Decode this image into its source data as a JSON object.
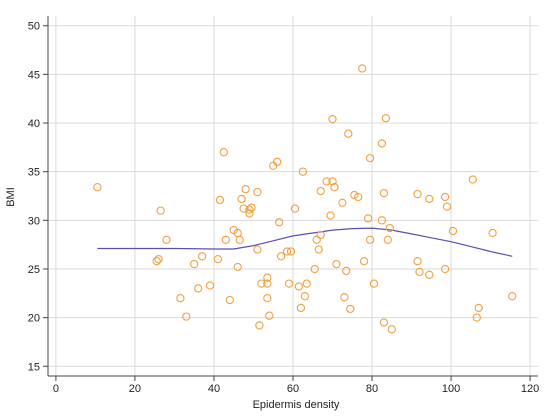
{
  "chart_data": {
    "type": "scatter",
    "xlabel": "Epidermis density",
    "ylabel": "BMI",
    "xlim": [
      -2,
      122
    ],
    "ylim": [
      14,
      51
    ],
    "xticks": [
      0,
      20,
      40,
      60,
      80,
      100,
      120
    ],
    "yticks": [
      15,
      20,
      25,
      30,
      35,
      40,
      45,
      50
    ],
    "grid": true,
    "colors": {
      "points": "#f0a040",
      "trend": "#5a4fb0",
      "grid": "#d9d9d9",
      "axis": "#444444"
    },
    "series": [
      {
        "kind": "points",
        "points": [
          [
            10.5,
            33.4
          ],
          [
            26,
            26
          ],
          [
            26.5,
            31
          ],
          [
            28,
            28
          ],
          [
            25.5,
            25.8
          ],
          [
            31.5,
            22
          ],
          [
            33,
            20.1
          ],
          [
            35,
            25.5
          ],
          [
            36,
            23
          ],
          [
            37,
            26.3
          ],
          [
            39,
            23.3
          ],
          [
            41,
            26
          ],
          [
            41.5,
            32.1
          ],
          [
            42.5,
            37
          ],
          [
            43,
            28
          ],
          [
            44,
            21.8
          ],
          [
            45,
            29
          ],
          [
            46,
            28.7
          ],
          [
            46.5,
            28
          ],
          [
            46,
            25.2
          ],
          [
            47,
            32.2
          ],
          [
            47.5,
            31.2
          ],
          [
            48,
            33.2
          ],
          [
            49,
            31.1
          ],
          [
            49,
            30.7
          ],
          [
            49.5,
            31.3
          ],
          [
            51,
            32.9
          ],
          [
            51,
            27
          ],
          [
            51.5,
            19.2
          ],
          [
            52,
            23.5
          ],
          [
            53.5,
            22
          ],
          [
            54,
            20.2
          ],
          [
            53.5,
            23.5
          ],
          [
            53.5,
            24.1
          ],
          [
            55,
            35.6
          ],
          [
            56,
            36
          ],
          [
            56.5,
            29.8
          ],
          [
            57,
            26.3
          ],
          [
            58.5,
            26.8
          ],
          [
            59.5,
            26.8
          ],
          [
            59,
            23.5
          ],
          [
            60.5,
            31.2
          ],
          [
            61.5,
            23.2
          ],
          [
            62,
            21
          ],
          [
            62.5,
            35
          ],
          [
            63,
            22.2
          ],
          [
            63.5,
            23.5
          ],
          [
            65.5,
            25
          ],
          [
            66,
            28
          ],
          [
            66.5,
            27
          ],
          [
            67,
            33
          ],
          [
            67,
            28.5
          ],
          [
            68.5,
            34
          ],
          [
            69.5,
            30.5
          ],
          [
            70,
            40.4
          ],
          [
            70,
            34
          ],
          [
            70.5,
            33.4
          ],
          [
            71,
            25.5
          ],
          [
            72.5,
            31.8
          ],
          [
            73,
            22.1
          ],
          [
            73.5,
            24.8
          ],
          [
            74,
            38.9
          ],
          [
            74.5,
            20.9
          ],
          [
            75.5,
            32.6
          ],
          [
            76.5,
            32.4
          ],
          [
            77.5,
            45.6
          ],
          [
            78,
            25.8
          ],
          [
            79,
            30.2
          ],
          [
            79.5,
            36.4
          ],
          [
            79.5,
            28
          ],
          [
            80.5,
            23.5
          ],
          [
            82.5,
            30
          ],
          [
            82.5,
            37.9
          ],
          [
            83.5,
            40.5
          ],
          [
            83,
            32.8
          ],
          [
            84,
            28
          ],
          [
            84.5,
            29.2
          ],
          [
            83,
            19.5
          ],
          [
            85,
            18.8
          ],
          [
            91.5,
            32.7
          ],
          [
            91.5,
            25.8
          ],
          [
            92,
            24.7
          ],
          [
            94.5,
            24.4
          ],
          [
            94.5,
            32.2
          ],
          [
            98.5,
            32.4
          ],
          [
            98.5,
            25
          ],
          [
            99,
            31.4
          ],
          [
            100.5,
            28.9
          ],
          [
            105.5,
            34.2
          ],
          [
            106.5,
            20
          ],
          [
            107,
            21
          ],
          [
            110.5,
            28.7
          ],
          [
            115.5,
            22.2
          ]
        ]
      },
      {
        "kind": "trend",
        "points": [
          [
            10.5,
            27.1
          ],
          [
            20,
            27.1
          ],
          [
            30,
            27.1
          ],
          [
            40,
            27.05
          ],
          [
            45,
            27.05
          ],
          [
            50,
            27.4
          ],
          [
            55,
            27.9
          ],
          [
            60,
            28.4
          ],
          [
            65,
            28.7
          ],
          [
            70,
            29
          ],
          [
            75,
            29.15
          ],
          [
            80,
            29.2
          ],
          [
            85,
            29
          ],
          [
            90,
            28.6
          ],
          [
            95,
            28.2
          ],
          [
            100,
            27.8
          ],
          [
            105,
            27.3
          ],
          [
            110,
            26.8
          ],
          [
            115.5,
            26.3
          ]
        ]
      }
    ]
  }
}
